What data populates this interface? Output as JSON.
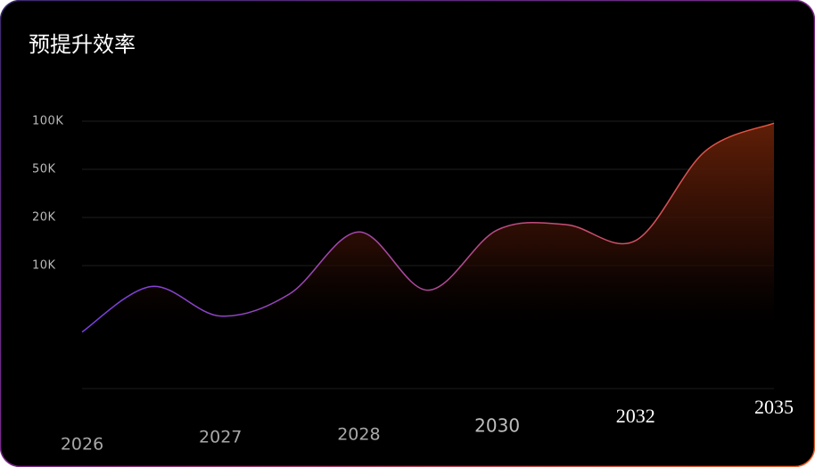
{
  "chart_data": {
    "type": "line",
    "title": "预提升效率",
    "categories": [
      "2026",
      null,
      "2027",
      null,
      "2028",
      null,
      "2030",
      null,
      "2032",
      null,
      "2035"
    ],
    "series": [
      {
        "color": "#e8553a",
        "values": [
          4600,
          8300,
          5900,
          7700,
          17000,
          8000,
          17400,
          18500,
          15200,
          68500,
          98000
        ]
      }
    ],
    "ylim": [
      0,
      100000
    ],
    "yticks": [
      {
        "value": 10000,
        "label": "10K"
      },
      {
        "value": 20000,
        "label": "20K"
      },
      {
        "value": 50000,
        "label": "50K"
      },
      {
        "value": 100000,
        "label": "100K"
      }
    ],
    "grid": true
  }
}
